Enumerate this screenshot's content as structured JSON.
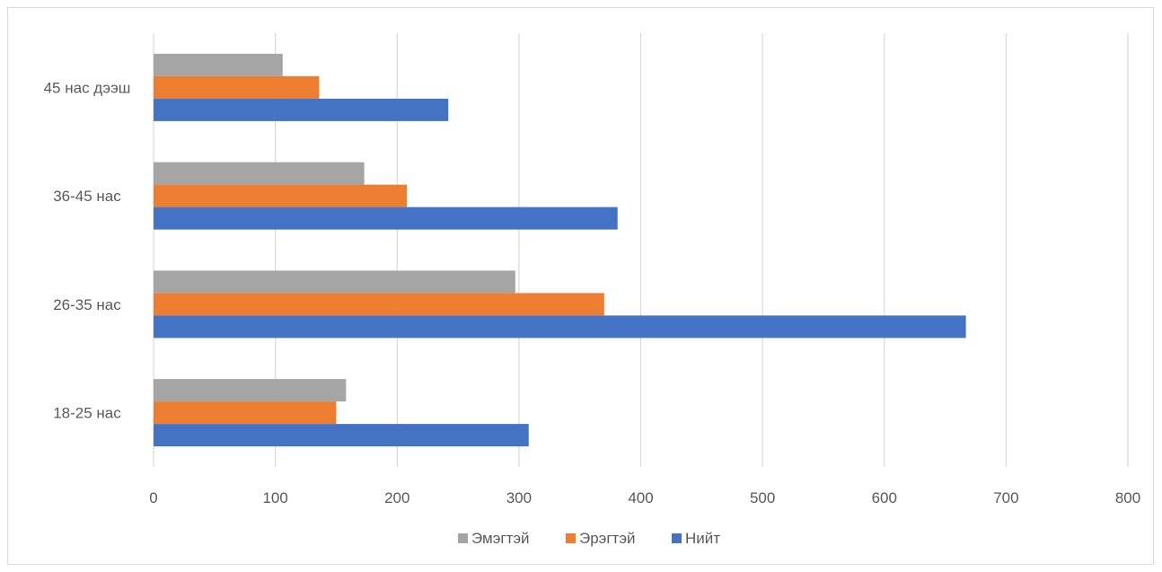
{
  "chart_data": {
    "type": "bar",
    "orientation": "horizontal",
    "categories": [
      "18-25 нас",
      "26-35 нас",
      "36-45 нас",
      "45 нас дээш"
    ],
    "series": [
      {
        "name": "Нийт",
        "color": "#4472C4",
        "values": [
          308,
          667,
          381,
          242
        ]
      },
      {
        "name": "Эрэгтэй",
        "color": "#ED7D31",
        "values": [
          150,
          370,
          208,
          136
        ]
      },
      {
        "name": "Эмэгтэй",
        "color": "#A5A5A5",
        "values": [
          158,
          297,
          173,
          106
        ]
      }
    ],
    "xlim": [
      0,
      800
    ],
    "x_ticks": [
      "0",
      "100",
      "200",
      "300",
      "400",
      "500",
      "600",
      "700",
      "800"
    ],
    "grid": true,
    "legend_position": "bottom",
    "legend_order": [
      "Эмэгтэй",
      "Эрэгтэй",
      "Нийт"
    ]
  }
}
